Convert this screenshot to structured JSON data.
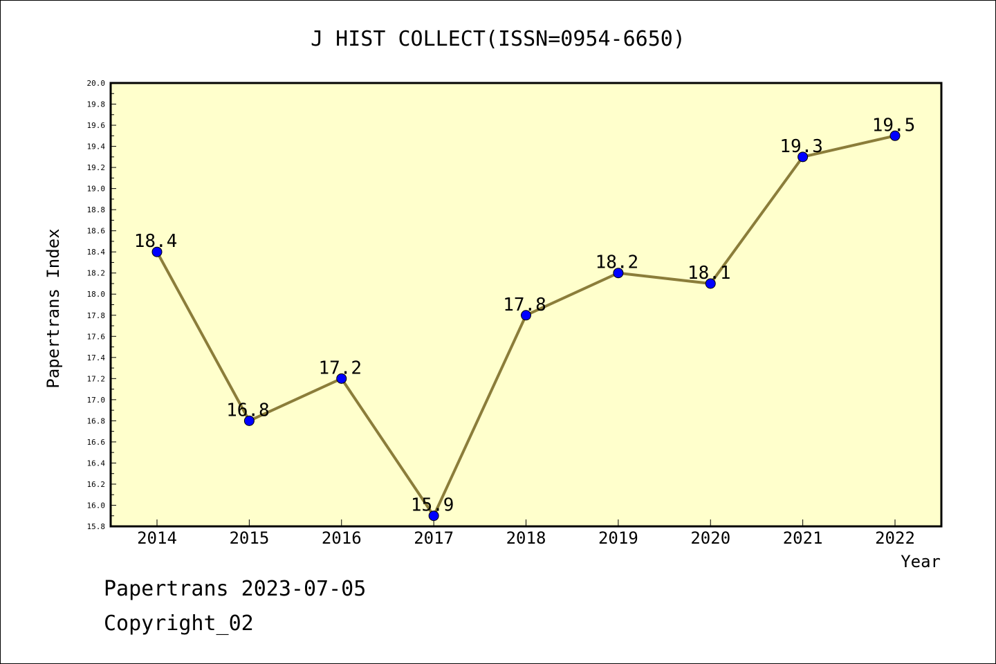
{
  "chart_data": {
    "type": "line",
    "title": "J HIST COLLECT(ISSN=0954-6650)",
    "xlabel": "Year",
    "ylabel": "Papertrans Index",
    "categories": [
      "2014",
      "2015",
      "2016",
      "2017",
      "2018",
      "2019",
      "2020",
      "2021",
      "2022"
    ],
    "series": [
      {
        "values": [
          18.4,
          16.8,
          17.2,
          15.9,
          17.8,
          18.2,
          18.1,
          19.3,
          19.5
        ],
        "labels": [
          "18.4",
          "16.8",
          "17.2",
          "15.9",
          "17.8",
          "18.2",
          "18.1",
          "19.3",
          "19.5"
        ]
      }
    ],
    "ylim": [
      15.8,
      20.0
    ],
    "yticks": [
      "15.8",
      "16.0",
      "16.2",
      "16.4",
      "16.6",
      "16.8",
      "17.0",
      "17.2",
      "17.4",
      "17.6",
      "17.8",
      "18.0",
      "18.2",
      "18.4",
      "18.6",
      "18.8",
      "19.0",
      "19.2",
      "19.4",
      "19.6",
      "19.8",
      "20.0"
    ],
    "grid": false,
    "legend": "none",
    "colors": {
      "plot_background": "#ffffcc",
      "line": "#8b7d3a",
      "marker": "#0000ff"
    }
  },
  "footer": {
    "line1": "Papertrans 2023-07-05",
    "line2": "Copyright_02"
  }
}
